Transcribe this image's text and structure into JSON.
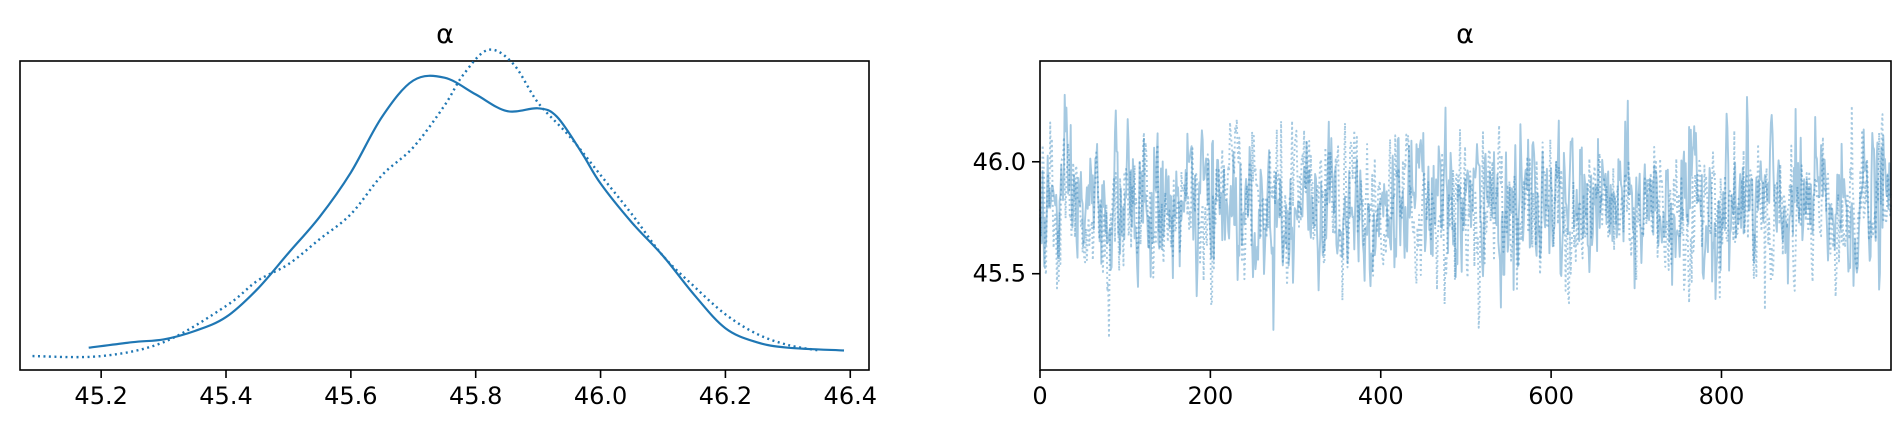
{
  "chart_data": [
    {
      "type": "line",
      "panel": "density",
      "title": "α",
      "xlabel": "",
      "ylabel": "",
      "xlim": [
        45.07,
        46.43
      ],
      "ylim": [
        -0.05,
        1.06
      ],
      "x_ticks": [
        45.2,
        45.4,
        45.6,
        45.8,
        46.0,
        46.2,
        46.4
      ],
      "x_tick_labels": [
        "45.2",
        "45.4",
        "45.6",
        "45.8",
        "46.0",
        "46.2",
        "46.4"
      ],
      "y_ticks_visible": false,
      "grid": false,
      "color": "#1f77b4",
      "series": [
        {
          "linestyle": "solid",
          "x": [
            45.18,
            45.25,
            45.3,
            45.35,
            45.4,
            45.45,
            45.5,
            45.55,
            45.6,
            45.65,
            45.7,
            45.75,
            45.8,
            45.85,
            45.9,
            45.93,
            45.97,
            46.0,
            46.05,
            46.1,
            46.15,
            46.2,
            46.25,
            46.3,
            46.39
          ],
          "y": [
            0.03,
            0.05,
            0.06,
            0.09,
            0.14,
            0.24,
            0.37,
            0.5,
            0.66,
            0.86,
            0.99,
            1.0,
            0.94,
            0.88,
            0.89,
            0.86,
            0.73,
            0.62,
            0.48,
            0.36,
            0.22,
            0.1,
            0.05,
            0.03,
            0.02
          ]
        },
        {
          "linestyle": "dotted",
          "x": [
            45.09,
            45.2,
            45.3,
            45.4,
            45.45,
            45.5,
            45.55,
            45.6,
            45.65,
            45.7,
            45.75,
            45.78,
            45.82,
            45.86,
            45.9,
            45.95,
            46.0,
            46.05,
            46.1,
            46.15,
            46.2,
            46.25,
            46.3,
            46.35
          ],
          "y": [
            0.0,
            0.0,
            0.05,
            0.18,
            0.27,
            0.33,
            0.42,
            0.51,
            0.65,
            0.75,
            0.9,
            1.01,
            1.1,
            1.05,
            0.91,
            0.79,
            0.65,
            0.51,
            0.36,
            0.25,
            0.15,
            0.08,
            0.04,
            0.02
          ]
        }
      ]
    },
    {
      "type": "line",
      "panel": "trace",
      "title": "α",
      "xlabel": "",
      "ylabel": "",
      "xlim": [
        0,
        999
      ],
      "ylim": [
        45.07,
        46.45
      ],
      "x_ticks": [
        0,
        200,
        400,
        600,
        800
      ],
      "x_tick_labels": [
        "0",
        "200",
        "400",
        "600",
        "800"
      ],
      "y_ticks": [
        45.5,
        46.0
      ],
      "y_tick_labels": [
        "45.5",
        "46.0"
      ],
      "grid": false,
      "color": "#1f77b4",
      "opacity": 0.4,
      "draws": 1000,
      "chain_mean": 45.8,
      "chain_sd": 0.16,
      "series": [
        {
          "linestyle": "solid"
        },
        {
          "linestyle": "dotted"
        }
      ]
    }
  ]
}
